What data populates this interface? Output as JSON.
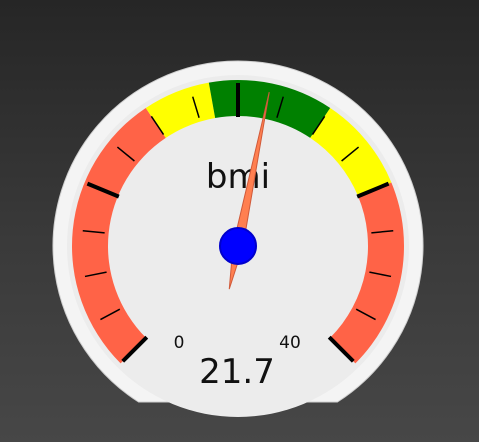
{
  "gauge": {
    "title": "bmi",
    "value": 21.7,
    "value_text": "21.7",
    "min": 0,
    "max": 40,
    "min_label": "0",
    "max_label": "40",
    "bands": [
      {
        "from": 0,
        "to": 15,
        "color": "#ff6347"
      },
      {
        "from": 15,
        "to": 18.5,
        "color": "#ffff00"
      },
      {
        "from": 18.5,
        "to": 25,
        "color": "#008000"
      },
      {
        "from": 25,
        "to": 30,
        "color": "#ffff00"
      },
      {
        "from": 30,
        "to": 40,
        "color": "#ff6347"
      }
    ],
    "major_ticks": [
      0,
      10,
      20,
      30,
      40
    ],
    "minor_step": 2.5,
    "needle_color": "#ff7f50",
    "hub_color": "#0000ff",
    "face_color": "#ececec",
    "rim_color": "#f4f4f4"
  }
}
